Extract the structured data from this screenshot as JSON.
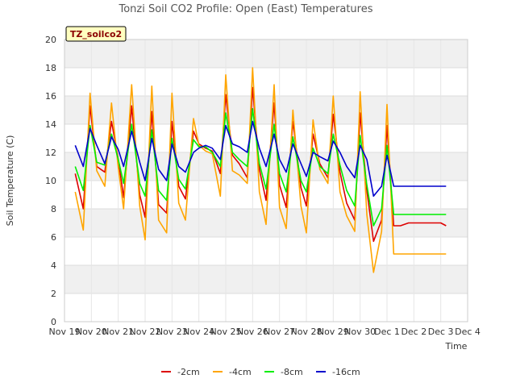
{
  "chart_data": {
    "type": "line",
    "title": "Tonzi Soil CO2 Profile: Open (East) Temperatures",
    "xlabel": "Time",
    "ylabel": "Soil Temperature (C)",
    "site_tag": "TZ_soilco2",
    "ylim": [
      0,
      20
    ],
    "yticks": [
      0,
      2,
      4,
      6,
      8,
      10,
      12,
      14,
      16,
      18,
      20
    ],
    "xlim": [
      0,
      15
    ],
    "xtick_labels": [
      "Nov 19",
      "Nov 20",
      "Nov 21",
      "Nov 22",
      "Nov 23",
      "Nov 24",
      "Nov 25",
      "Nov 26",
      "Nov 27",
      "Nov 28",
      "Nov 29",
      "Nov 30",
      "Dec 1",
      "Dec 2",
      "Dec 3",
      "Dec 4"
    ],
    "grid": true,
    "legend_position": "bottom",
    "x_days": [
      0.4,
      0.7,
      0.95,
      1.2,
      1.5,
      1.75,
      2.0,
      2.2,
      2.5,
      2.8,
      3.0,
      3.25,
      3.5,
      3.8,
      4.0,
      4.25,
      4.5,
      4.8,
      5.0,
      5.25,
      5.5,
      5.8,
      6.0,
      6.25,
      6.5,
      6.8,
      7.0,
      7.25,
      7.5,
      7.8,
      8.0,
      8.25,
      8.5,
      8.8,
      9.0,
      9.25,
      9.5,
      9.8,
      10.0,
      10.25,
      10.5,
      10.8,
      11.0,
      11.25,
      11.5,
      11.8,
      12.0,
      12.25,
      12.5,
      12.8,
      13.0,
      13.25,
      13.5,
      13.8,
      14.0,
      14.2
    ],
    "series": [
      {
        "name": "-2cm",
        "color": "#dd0000",
        "values": [
          10.5,
          8.0,
          15.3,
          11.0,
          10.6,
          14.2,
          11.5,
          8.8,
          15.3,
          9.0,
          7.4,
          14.9,
          8.3,
          7.7,
          14.2,
          9.6,
          8.7,
          13.5,
          12.6,
          12.3,
          12.1,
          10.5,
          16.1,
          11.8,
          11.2,
          10.2,
          16.6,
          10.8,
          8.6,
          15.5,
          9.7,
          8.1,
          14.2,
          9.5,
          8.2,
          13.3,
          11.2,
          10.2,
          14.7,
          10.6,
          8.4,
          7.2,
          14.8,
          9.3,
          5.7,
          7.2,
          13.9,
          6.8,
          6.8,
          7.0,
          7.0,
          7.0,
          7.0,
          7.0,
          7.0,
          6.8
        ]
      },
      {
        "name": "-4cm",
        "color": "#ffa500",
        "values": [
          9.2,
          6.5,
          16.2,
          10.7,
          9.6,
          15.5,
          10.9,
          8.0,
          16.8,
          8.2,
          5.8,
          16.7,
          7.2,
          6.3,
          16.2,
          8.4,
          7.2,
          14.4,
          12.5,
          12.1,
          11.9,
          8.9,
          17.5,
          10.7,
          10.4,
          9.8,
          18.0,
          9.2,
          6.9,
          16.8,
          8.1,
          6.6,
          15.0,
          8.2,
          6.3,
          14.3,
          10.8,
          9.8,
          16.0,
          9.2,
          7.5,
          6.4,
          16.3,
          7.6,
          3.5,
          6.4,
          15.4,
          4.8,
          4.8,
          4.8,
          4.8,
          4.8,
          4.8,
          4.8,
          4.8,
          4.8
        ]
      },
      {
        "name": "-8cm",
        "color": "#00ee00",
        "values": [
          11.0,
          9.3,
          13.9,
          11.3,
          11.1,
          13.3,
          11.5,
          9.8,
          14.0,
          9.8,
          8.9,
          13.6,
          9.3,
          8.6,
          13.0,
          10.1,
          9.4,
          12.9,
          12.4,
          12.4,
          12.0,
          11.0,
          14.8,
          12.0,
          11.5,
          11.0,
          15.1,
          11.2,
          9.4,
          14.0,
          10.5,
          9.2,
          13.1,
          10.0,
          9.2,
          12.3,
          11.0,
          10.5,
          13.3,
          11.1,
          9.3,
          8.2,
          13.2,
          9.7,
          6.8,
          8.0,
          12.5,
          7.6,
          7.6,
          7.6,
          7.6,
          7.6,
          7.6,
          7.6,
          7.6,
          7.6
        ]
      },
      {
        "name": "-16cm",
        "color": "#0000cc",
        "values": [
          12.5,
          11.0,
          13.7,
          12.5,
          11.2,
          13.1,
          12.2,
          11.0,
          13.5,
          11.3,
          10.0,
          13.0,
          10.8,
          10.0,
          12.6,
          11.0,
          10.6,
          12.0,
          12.3,
          12.5,
          12.3,
          11.5,
          13.9,
          12.6,
          12.4,
          12.0,
          14.2,
          12.3,
          11.0,
          13.3,
          11.5,
          10.6,
          12.6,
          11.2,
          10.3,
          12.0,
          11.7,
          11.4,
          12.8,
          12.0,
          11.0,
          10.2,
          12.5,
          11.5,
          8.9,
          9.6,
          11.8,
          9.6,
          9.6,
          9.6,
          9.6,
          9.6,
          9.6,
          9.6,
          9.6,
          9.6
        ]
      }
    ]
  }
}
